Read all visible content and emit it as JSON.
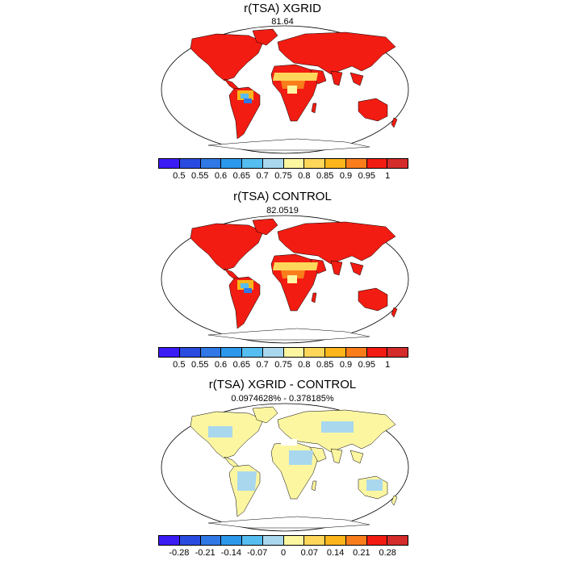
{
  "panels": [
    {
      "title": "r(TSA) XGRID",
      "subtitle": "81.64",
      "colorbar": {
        "colors": [
          "#3b1cf5",
          "#2a4be0",
          "#2f78e6",
          "#2b98ec",
          "#55bdf0",
          "#a9d8ee",
          "#fdf6a1",
          "#fdd65a",
          "#fcb61c",
          "#fa7d1c",
          "#f21c12",
          "#d42b2b"
        ],
        "tick_labels": [
          "0.5",
          "0.55",
          "0.6",
          "0.65",
          "0.7",
          "0.75",
          "0.8",
          "0.85",
          "0.9",
          "0.95",
          "1"
        ]
      }
    },
    {
      "title": "r(TSA) CONTROL",
      "subtitle": "82.0519",
      "colorbar": {
        "colors": [
          "#3b1cf5",
          "#2a4be0",
          "#2f78e6",
          "#2b98ec",
          "#55bdf0",
          "#a9d8ee",
          "#fdf6a1",
          "#fdd65a",
          "#fcb61c",
          "#fa7d1c",
          "#f21c12",
          "#d42b2b"
        ],
        "tick_labels": [
          "0.5",
          "0.55",
          "0.6",
          "0.65",
          "0.7",
          "0.75",
          "0.8",
          "0.85",
          "0.9",
          "0.95",
          "1"
        ]
      }
    },
    {
      "title": "r(TSA) XGRID - CONTROL",
      "subtitle": "0.0974628% - 0.378185%",
      "colorbar": {
        "colors": [
          "#3b1cf5",
          "#2a4be0",
          "#2f78e6",
          "#2b98ec",
          "#55bdf0",
          "#a9d8ee",
          "#fdf6a1",
          "#fdd65a",
          "#fcb61c",
          "#fa7d1c",
          "#f21c12",
          "#d42b2b"
        ],
        "tick_labels": [
          "-0.28",
          "-0.21",
          "-0.14",
          "-0.07",
          "0",
          "0.07",
          "0.14",
          "0.21",
          "0.28"
        ]
      }
    }
  ],
  "colors": {
    "land_high": "#f21c12",
    "land_mid": "#fa7d1c",
    "land_low": "#fdd65a",
    "land_none": "#ffffff",
    "diff_main": "#fdf6a1",
    "diff_alt": "#a9d8ee",
    "outline": "#000000"
  }
}
